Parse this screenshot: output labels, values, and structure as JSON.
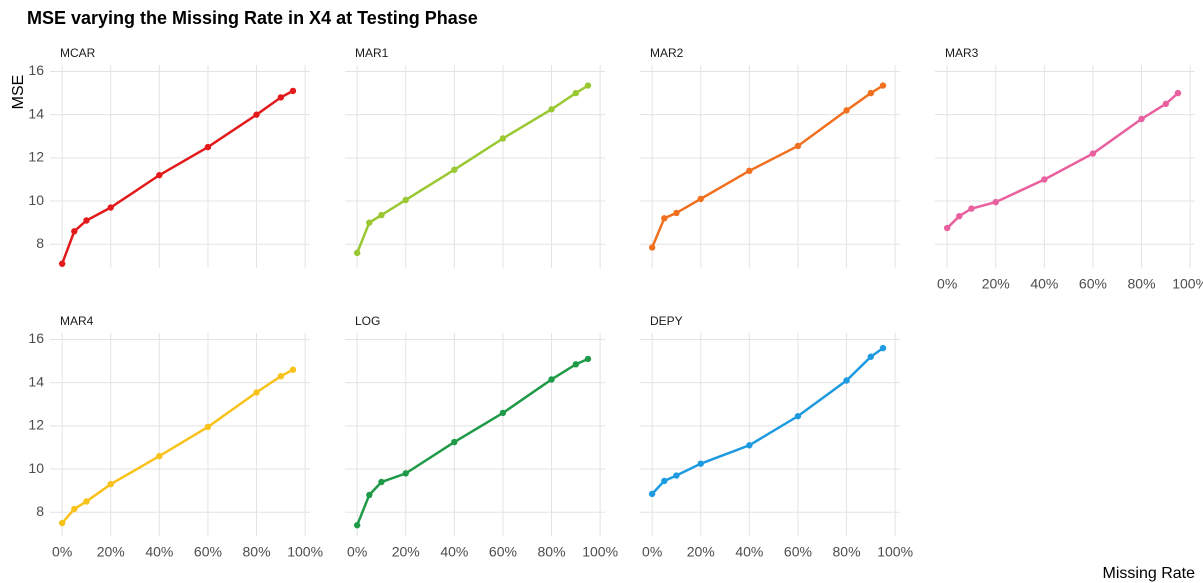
{
  "chart_data": {
    "type": "line",
    "facets": true,
    "title": "MSE varying the Missing Rate in X4 at Testing Phase",
    "xlabel": "Missing Rate",
    "ylabel": "MSE",
    "x": [
      0,
      5,
      10,
      20,
      40,
      60,
      80,
      90,
      95
    ],
    "xlim": [
      -5,
      102
    ],
    "xticks": [
      {
        "value": 0,
        "label": "0%"
      },
      {
        "value": 20,
        "label": "20%"
      },
      {
        "value": 40,
        "label": "40%"
      },
      {
        "value": 60,
        "label": "60%"
      },
      {
        "value": 80,
        "label": "80%"
      },
      {
        "value": 100,
        "label": "100%"
      }
    ],
    "ylim": [
      6.9,
      16.3
    ],
    "yticks": [
      8,
      10,
      12,
      14,
      16
    ],
    "grid": true,
    "series": [
      {
        "name": "MCAR",
        "color": "#e31a1c",
        "values": [
          7.1,
          8.6,
          9.1,
          9.7,
          11.2,
          12.5,
          14.0,
          14.8,
          15.1
        ]
      },
      {
        "name": "MAR1",
        "color": "#9ac832",
        "values": [
          7.6,
          9.0,
          9.35,
          10.05,
          11.45,
          12.9,
          14.25,
          15.0,
          15.35
        ]
      },
      {
        "name": "MAR2",
        "color": "#f07020",
        "values": [
          7.85,
          9.2,
          9.45,
          10.1,
          11.4,
          12.55,
          14.2,
          15.0,
          15.35
        ]
      },
      {
        "name": "MAR3",
        "color": "#e8609e",
        "values": [
          8.75,
          9.3,
          9.65,
          9.95,
          11.0,
          12.2,
          13.8,
          14.5,
          15.0
        ]
      },
      {
        "name": "MAR4",
        "color": "#f8c21a",
        "values": [
          7.5,
          8.15,
          8.5,
          9.3,
          10.6,
          11.95,
          13.55,
          14.3,
          14.6
        ]
      },
      {
        "name": "LOG",
        "color": "#1f9a48",
        "values": [
          7.4,
          8.8,
          9.4,
          9.8,
          11.25,
          12.6,
          14.15,
          14.85,
          15.1
        ]
      },
      {
        "name": "DEPY",
        "color": "#1e9be0",
        "values": [
          8.85,
          9.45,
          9.7,
          10.25,
          11.1,
          12.45,
          14.1,
          15.2,
          15.6
        ]
      }
    ]
  }
}
